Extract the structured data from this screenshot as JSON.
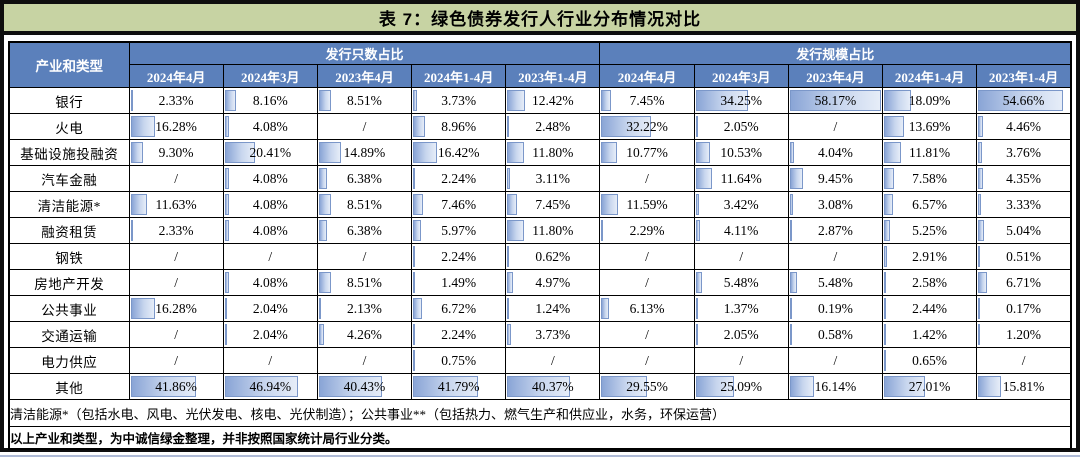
{
  "title": "表 7：绿色债券发行人行业分布情况对比",
  "table": {
    "corner_header": "产业和类型",
    "groups": [
      {
        "label": "发行只数占比",
        "columns": [
          "2024年4月",
          "2024年3月",
          "2023年4月",
          "2024年1-4月",
          "2023年1-4月"
        ]
      },
      {
        "label": "发行规模占比",
        "columns": [
          "2024年4月",
          "2024年3月",
          "2023年4月",
          "2024年1-4月",
          "2023年1-4月"
        ]
      }
    ],
    "rows": [
      {
        "label": "银行",
        "values": [
          "2.33%",
          "8.16%",
          "8.51%",
          "3.73%",
          "12.42%",
          "7.45%",
          "34.25%",
          "58.17%",
          "18.09%",
          "54.66%"
        ]
      },
      {
        "label": "火电",
        "values": [
          "16.28%",
          "4.08%",
          "/",
          "8.96%",
          "2.48%",
          "32.22%",
          "2.05%",
          "/",
          "13.69%",
          "4.46%"
        ]
      },
      {
        "label": "基础设施投融资",
        "values": [
          "9.30%",
          "20.41%",
          "14.89%",
          "16.42%",
          "11.80%",
          "10.77%",
          "10.53%",
          "4.04%",
          "11.81%",
          "3.76%"
        ]
      },
      {
        "label": "汽车金融",
        "values": [
          "/",
          "4.08%",
          "6.38%",
          "2.24%",
          "3.11%",
          "/",
          "11.64%",
          "9.45%",
          "7.58%",
          "4.35%"
        ]
      },
      {
        "label": "清洁能源*",
        "values": [
          "11.63%",
          "4.08%",
          "8.51%",
          "7.46%",
          "7.45%",
          "11.59%",
          "3.42%",
          "3.08%",
          "6.57%",
          "3.33%"
        ]
      },
      {
        "label": "融资租赁",
        "values": [
          "2.33%",
          "4.08%",
          "6.38%",
          "5.97%",
          "11.80%",
          "2.29%",
          "4.11%",
          "2.87%",
          "5.25%",
          "5.04%"
        ]
      },
      {
        "label": "钢铁",
        "values": [
          "/",
          "/",
          "/",
          "2.24%",
          "0.62%",
          "/",
          "/",
          "/",
          "2.91%",
          "0.51%"
        ]
      },
      {
        "label": "房地产开发",
        "values": [
          "/",
          "4.08%",
          "8.51%",
          "1.49%",
          "4.97%",
          "/",
          "5.48%",
          "5.48%",
          "2.58%",
          "6.71%"
        ]
      },
      {
        "label": "公共事业",
        "values": [
          "16.28%",
          "2.04%",
          "2.13%",
          "6.72%",
          "1.24%",
          "6.13%",
          "1.37%",
          "0.19%",
          "2.44%",
          "0.17%"
        ]
      },
      {
        "label": "交通运输",
        "values": [
          "/",
          "2.04%",
          "4.26%",
          "2.24%",
          "3.73%",
          "/",
          "2.05%",
          "0.58%",
          "1.42%",
          "1.20%"
        ]
      },
      {
        "label": "电力供应",
        "values": [
          "/",
          "/",
          "/",
          "0.75%",
          "/",
          "/",
          "/",
          "/",
          "0.65%",
          "/"
        ]
      },
      {
        "label": "其他",
        "values": [
          "41.86%",
          "46.94%",
          "40.43%",
          "41.79%",
          "40.37%",
          "29.55%",
          "25.09%",
          "16.14%",
          "27.01%",
          "15.81%"
        ]
      }
    ],
    "footnotes": [
      "清洁能源*（包括水电、风电、光伏发电、核电、光伏制造）；公共事业**（包括热力、燃气生产和供应业，水务，环保运营）",
      "以上产业和类型，为中诚信绿金整理，并非按照国家统计局行业分类。"
    ]
  },
  "bar_scale_max_pct": 58.17,
  "colors": {
    "title_bg": "#c7d3a3",
    "header_bg": "#5b80bb",
    "header_text": "#ffffff",
    "bar_gradient_start": "#8aa5d6",
    "bar_gradient_end": "#e6edf8",
    "bar_border": "#7b97c9",
    "grid_border": "#000000"
  },
  "chart_data": {
    "type": "table",
    "title": "表 7：绿色债券发行人行业分布情况对比",
    "column_groups": [
      "发行只数占比",
      "发行规模占比"
    ],
    "columns": [
      "2024年4月",
      "2024年3月",
      "2023年4月",
      "2024年1-4月",
      "2023年1-4月",
      "2024年4月",
      "2024年3月",
      "2023年4月",
      "2024年1-4月",
      "2023年1-4月"
    ],
    "rows": [
      {
        "label": "银行",
        "values_pct": [
          2.33,
          8.16,
          8.51,
          3.73,
          12.42,
          7.45,
          34.25,
          58.17,
          18.09,
          54.66
        ]
      },
      {
        "label": "火电",
        "values_pct": [
          16.28,
          4.08,
          null,
          8.96,
          2.48,
          32.22,
          2.05,
          null,
          13.69,
          4.46
        ]
      },
      {
        "label": "基础设施投融资",
        "values_pct": [
          9.3,
          20.41,
          14.89,
          16.42,
          11.8,
          10.77,
          10.53,
          4.04,
          11.81,
          3.76
        ]
      },
      {
        "label": "汽车金融",
        "values_pct": [
          null,
          4.08,
          6.38,
          2.24,
          3.11,
          null,
          11.64,
          9.45,
          7.58,
          4.35
        ]
      },
      {
        "label": "清洁能源*",
        "values_pct": [
          11.63,
          4.08,
          8.51,
          7.46,
          7.45,
          11.59,
          3.42,
          3.08,
          6.57,
          3.33
        ]
      },
      {
        "label": "融资租赁",
        "values_pct": [
          2.33,
          4.08,
          6.38,
          5.97,
          11.8,
          2.29,
          4.11,
          2.87,
          5.25,
          5.04
        ]
      },
      {
        "label": "钢铁",
        "values_pct": [
          null,
          null,
          null,
          2.24,
          0.62,
          null,
          null,
          null,
          2.91,
          0.51
        ]
      },
      {
        "label": "房地产开发",
        "values_pct": [
          null,
          4.08,
          8.51,
          1.49,
          4.97,
          null,
          5.48,
          5.48,
          2.58,
          6.71
        ]
      },
      {
        "label": "公共事业",
        "values_pct": [
          16.28,
          2.04,
          2.13,
          6.72,
          1.24,
          6.13,
          1.37,
          0.19,
          2.44,
          0.17
        ]
      },
      {
        "label": "交通运输",
        "values_pct": [
          null,
          2.04,
          4.26,
          2.24,
          3.73,
          null,
          2.05,
          0.58,
          1.42,
          1.2
        ]
      },
      {
        "label": "电力供应",
        "values_pct": [
          null,
          null,
          null,
          0.75,
          null,
          null,
          null,
          null,
          0.65,
          null
        ]
      },
      {
        "label": "其他",
        "values_pct": [
          41.86,
          46.94,
          40.43,
          41.79,
          40.37,
          29.55,
          25.09,
          16.14,
          27.01,
          15.81
        ]
      }
    ],
    "notes": [
      "清洁能源*（包括水电、风电、光伏发电、核电、光伏制造）；公共事业**（包括热力、燃气生产和供应业，水务，环保运营）",
      "以上产业和类型，为中诚信绿金整理，并非按照国家统计局行业分类。"
    ],
    "layout": {
      "data_bars": true,
      "bar_scale_max_pct": 58.17,
      "missing_marker": "/"
    }
  }
}
